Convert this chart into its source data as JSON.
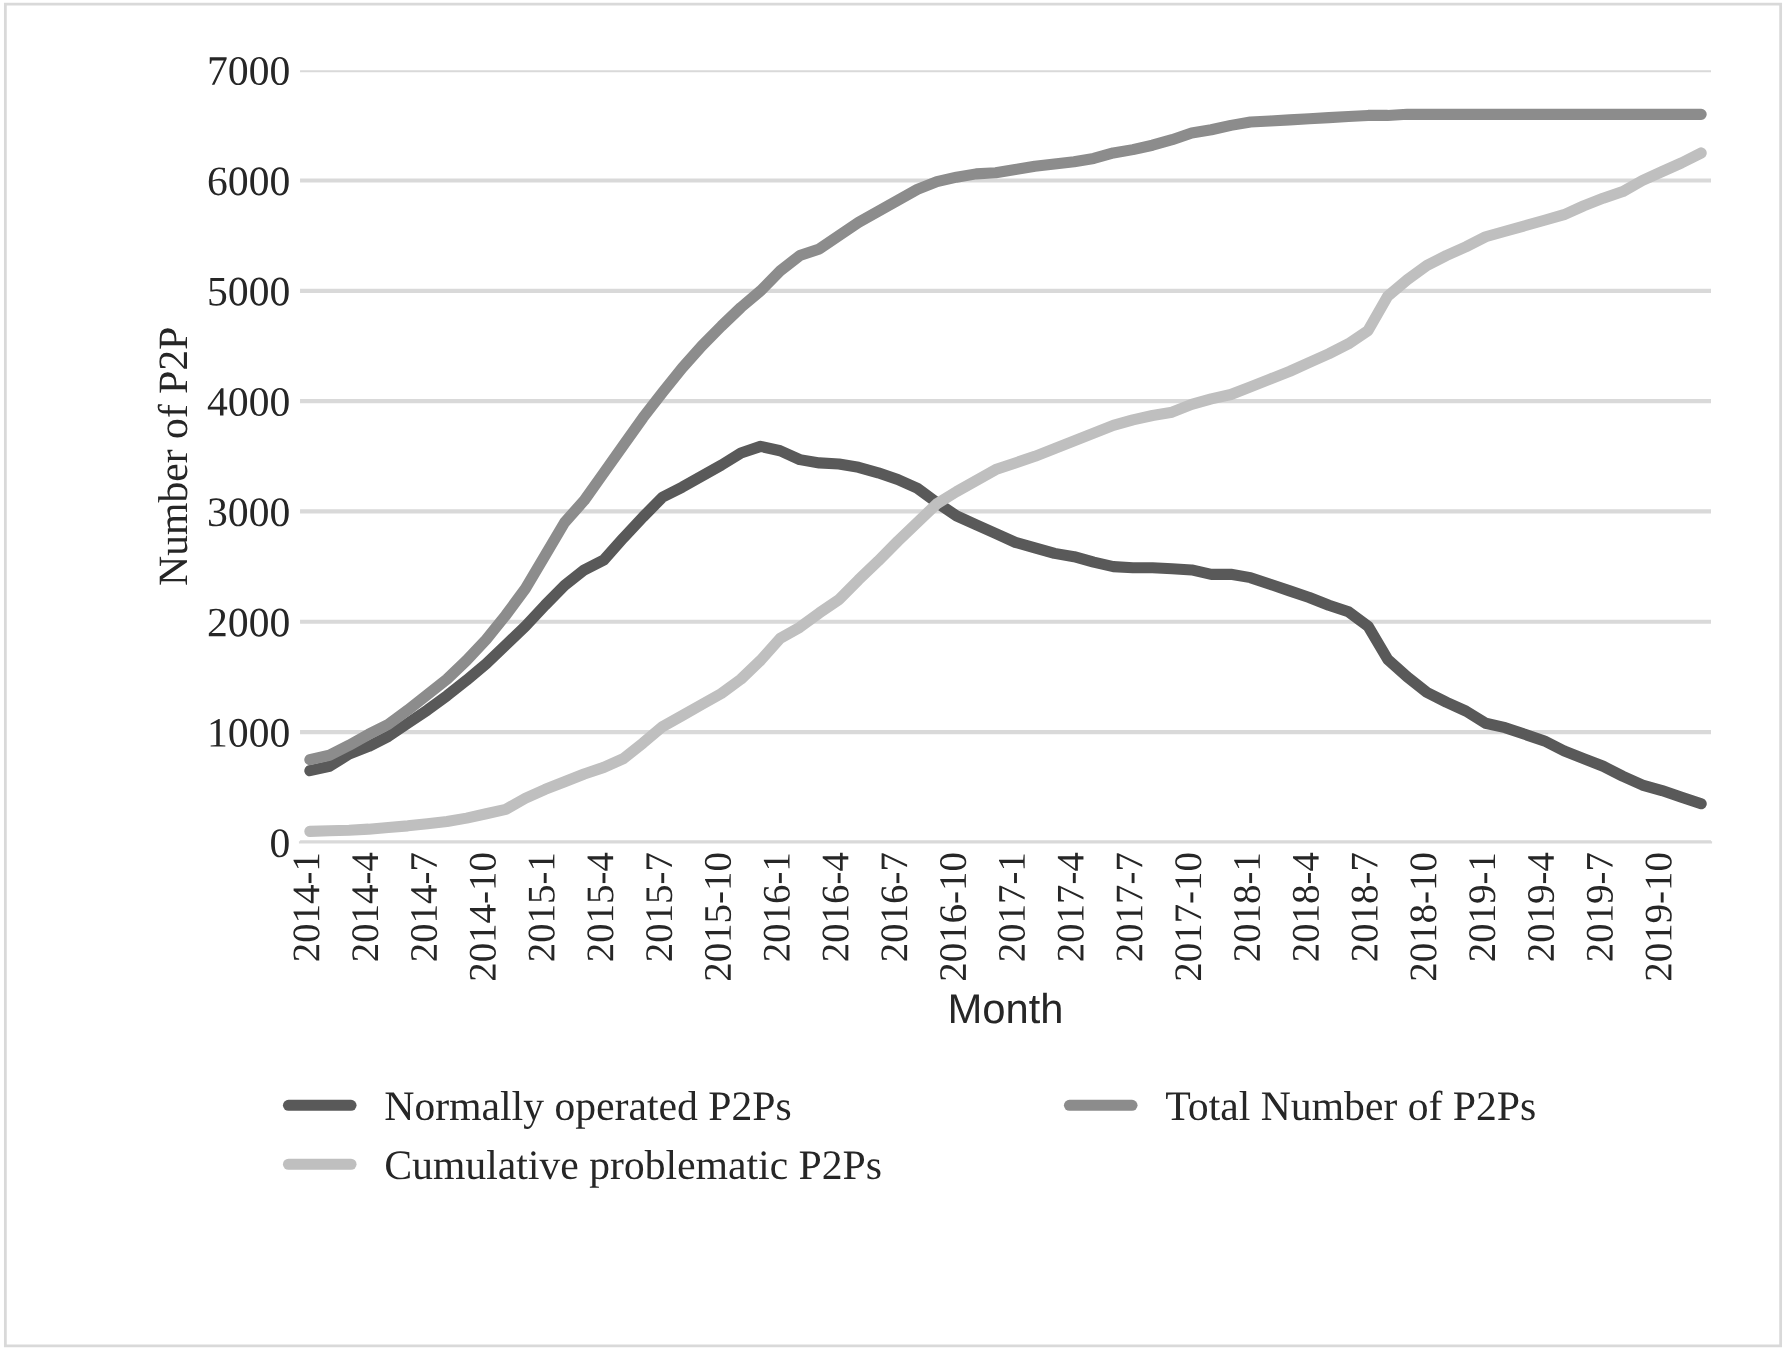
{
  "chart_data": {
    "type": "line",
    "xlabel": "Month",
    "ylabel": "Number of P2P",
    "categories": [
      "2014-1",
      null,
      null,
      "2014-4",
      null,
      null,
      "2014-7",
      null,
      null,
      "2014-10",
      null,
      null,
      "2015-1",
      null,
      null,
      "2015-4",
      null,
      null,
      "2015-7",
      null,
      null,
      "2015-10",
      null,
      null,
      "2016-1",
      null,
      null,
      "2016-4",
      null,
      null,
      "2016-7",
      null,
      null,
      "2016-10",
      null,
      null,
      "2017-1",
      null,
      null,
      "2017-4",
      null,
      null,
      "2017-7",
      null,
      null,
      "2017-10",
      null,
      null,
      "2018-1",
      null,
      null,
      "2018-4",
      null,
      null,
      "2018-7",
      null,
      null,
      "2018-10",
      null,
      null,
      "2019-1",
      null,
      null,
      "2019-4",
      null,
      null,
      "2019-7",
      null,
      null,
      "2019-10",
      null,
      null
    ],
    "series": [
      {
        "name": "Normally operated P2Ps",
        "color": "#595959",
        "values": [
          650,
          690,
          800,
          870,
          960,
          1080,
          1200,
          1330,
          1470,
          1620,
          1790,
          1960,
          2150,
          2330,
          2470,
          2560,
          2760,
          2950,
          3130,
          3220,
          3320,
          3420,
          3530,
          3590,
          3550,
          3470,
          3440,
          3430,
          3400,
          3350,
          3290,
          3210,
          3080,
          2960,
          2880,
          2800,
          2720,
          2670,
          2620,
          2590,
          2540,
          2500,
          2490,
          2490,
          2480,
          2470,
          2430,
          2430,
          2400,
          2340,
          2280,
          2220,
          2150,
          2090,
          1960,
          1660,
          1500,
          1360,
          1270,
          1190,
          1080,
          1040,
          980,
          920,
          830,
          760,
          690,
          600,
          520,
          470,
          410,
          350
        ]
      },
      {
        "name": "Cumulative problematic P2Ps",
        "color": "#bfbfbf",
        "values": [
          100,
          105,
          110,
          120,
          135,
          150,
          170,
          190,
          220,
          260,
          300,
          400,
          480,
          550,
          620,
          680,
          760,
          900,
          1050,
          1150,
          1250,
          1350,
          1480,
          1650,
          1850,
          1950,
          2080,
          2200,
          2380,
          2550,
          2730,
          2900,
          3070,
          3180,
          3280,
          3380,
          3440,
          3500,
          3570,
          3640,
          3710,
          3780,
          3830,
          3870,
          3900,
          3970,
          4020,
          4060,
          4130,
          4200,
          4270,
          4350,
          4430,
          4520,
          4640,
          4950,
          5100,
          5230,
          5320,
          5400,
          5490,
          5540,
          5590,
          5640,
          5690,
          5770,
          5840,
          5900,
          6000,
          6080,
          6160,
          6250
        ]
      },
      {
        "name": "Total Number of P2Ps",
        "color": "#8c8c8c",
        "values": [
          750,
          790,
          880,
          980,
          1070,
          1200,
          1340,
          1480,
          1650,
          1840,
          2060,
          2300,
          2600,
          2900,
          3100,
          3350,
          3600,
          3850,
          4080,
          4300,
          4500,
          4680,
          4850,
          5000,
          5180,
          5320,
          5380,
          5500,
          5620,
          5720,
          5820,
          5920,
          5990,
          6030,
          6060,
          6070,
          6100,
          6130,
          6150,
          6170,
          6200,
          6250,
          6280,
          6320,
          6370,
          6430,
          6460,
          6500,
          6530,
          6540,
          6550,
          6560,
          6570,
          6580,
          6590,
          6590,
          6600,
          6600,
          6600,
          6600,
          6600,
          6600,
          6600,
          6600,
          6600,
          6600,
          6600,
          6600,
          6600,
          6600,
          6600,
          6600
        ]
      }
    ],
    "ylim": [
      0,
      7000
    ],
    "yticks": [
      0,
      1000,
      2000,
      3000,
      4000,
      5000,
      6000,
      7000
    ],
    "grid": "y",
    "legend": "bottom",
    "marker": "none",
    "line_style": "solid"
  }
}
